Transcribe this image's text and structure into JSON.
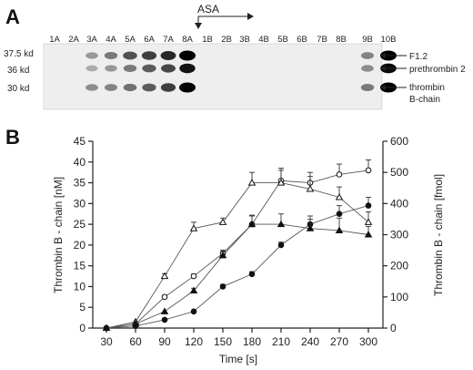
{
  "panel_a": {
    "letter": "A",
    "treatment_label": "ASA",
    "lanes": [
      "1A",
      "2A",
      "3A",
      "4A",
      "5A",
      "6A",
      "7A",
      "8A",
      "1B",
      "2B",
      "3B",
      "4B",
      "5B",
      "6B",
      "7B",
      "8B",
      "9B",
      "10B"
    ],
    "mw_markers": [
      "37.5 kd",
      "36 kd",
      "30 kd"
    ],
    "band_labels": [
      "F1.2",
      "prethrombin 2",
      "thrombin",
      "B-chain"
    ],
    "band_intensity": [
      [
        0,
        0,
        0.25,
        0.4,
        0.6,
        0.7,
        0.8,
        1,
        0,
        0,
        0,
        0,
        0,
        0,
        0,
        0,
        0.35,
        1
      ],
      [
        0,
        0,
        0.15,
        0.25,
        0.4,
        0.55,
        0.65,
        0.9,
        0,
        0,
        0,
        0,
        0,
        0,
        0,
        0,
        0.3,
        0.95
      ],
      [
        0,
        0,
        0.3,
        0.35,
        0.45,
        0.55,
        0.7,
        1,
        0,
        0,
        0,
        0,
        0,
        0,
        0,
        0,
        0.4,
        1
      ]
    ]
  },
  "panel_b": {
    "letter": "B",
    "chart_data": {
      "type": "line",
      "x": [
        30,
        60,
        90,
        120,
        150,
        180,
        210,
        240,
        270,
        300
      ],
      "xlabel": "Time [s]",
      "ylabel": "Thrombin B - chain [nM]",
      "ylabel_right": "Thrombin B - chain [fmol]",
      "xlim": [
        30,
        300
      ],
      "ylim": [
        0,
        45
      ],
      "ylim_right": [
        0,
        600
      ],
      "x_ticks": [
        "30",
        "60",
        "90",
        "120",
        "150",
        "180",
        "210",
        "240",
        "270",
        "300"
      ],
      "y_ticks": [
        "0",
        "5",
        "10",
        "15",
        "20",
        "25",
        "30",
        "35",
        "40",
        "45"
      ],
      "y_ticks_right": [
        "0",
        "100",
        "200",
        "300",
        "400",
        "500",
        "600"
      ],
      "series": [
        {
          "marker": "open-circle",
          "axis": "left",
          "values": [
            0,
            1,
            7.5,
            12.5,
            18,
            25,
            35.5,
            35,
            37,
            38
          ],
          "errors": [
            0,
            0,
            0.4,
            0.5,
            0.8,
            2.2,
            3,
            2.5,
            2.5,
            2.5
          ]
        },
        {
          "marker": "open-triangle",
          "axis": "left",
          "values": [
            0,
            1.5,
            12.5,
            24,
            25.5,
            35,
            35,
            33.5,
            31.5,
            25.5
          ],
          "errors": [
            0,
            0,
            0.6,
            1.5,
            1,
            2.5,
            3,
            3,
            2.5,
            2.5
          ]
        },
        {
          "marker": "filled-circle",
          "axis": "left",
          "values": [
            0,
            0.5,
            2,
            4,
            10,
            13,
            20,
            25,
            27.5,
            29.5
          ],
          "errors": [
            0,
            0,
            0.2,
            0.3,
            0.5,
            0.6,
            0.7,
            1.2,
            2,
            2
          ]
        },
        {
          "marker": "filled-triangle",
          "axis": "left",
          "values": [
            0,
            1,
            4,
            9,
            17.5,
            25,
            25,
            24,
            23.5,
            22.5
          ],
          "errors": [
            0,
            0,
            0.3,
            0.6,
            0.8,
            2,
            2.5,
            3,
            3,
            2
          ]
        }
      ]
    }
  }
}
